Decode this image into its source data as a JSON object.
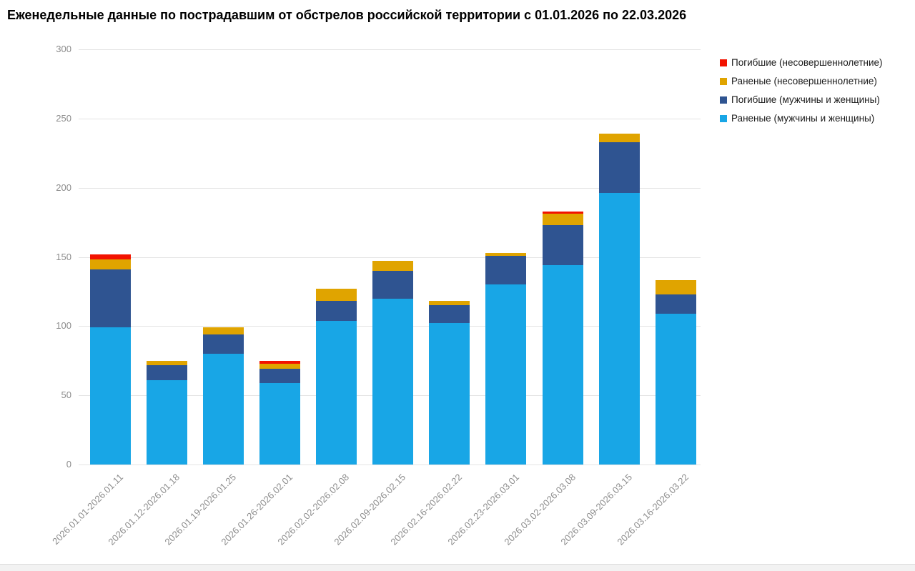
{
  "title": "Еженедельные данные по пострадавшим от обстрелов российской территории с 01.01.2026 по 22.03.2026",
  "chart_data": {
    "type": "bar",
    "stacked": true,
    "title": "Еженедельные данные по пострадавшим от обстрелов российской территории с 01.01.2026 по 22.03.2026",
    "categories": [
      "2026.01.01-2026.01.11",
      "2026.01.12-2026.01.18",
      "2026.01.19-2026.01.25",
      "2026.01.26-2026.02.01",
      "2026.02.02-2026.02.08",
      "2026.02.09-2026.02.15",
      "2026.02.16-2026.02.22",
      "2026.02.23-2026.03.01",
      "2026.03.02-2026.03.08",
      "2026.03.09-2026.03.15",
      "2026.03.16-2026.03.22"
    ],
    "series": [
      {
        "name": "Раненые (мужчины и женщины)",
        "color": "#18a6e6",
        "values": [
          99,
          61,
          80,
          59,
          104,
          120,
          102,
          130,
          144,
          196,
          109
        ]
      },
      {
        "name": "Погибшие (мужчины и женщины)",
        "color": "#2f5491",
        "values": [
          42,
          11,
          14,
          10,
          14,
          20,
          13,
          21,
          29,
          37,
          14
        ]
      },
      {
        "name": "Раненые (несовершеннолетние)",
        "color": "#e0a400",
        "values": [
          7,
          3,
          5,
          4,
          9,
          7,
          3,
          2,
          8,
          6,
          10
        ]
      },
      {
        "name": "Погибшие (несовершеннолетние)",
        "color": "#f21300",
        "values": [
          4,
          0,
          0,
          2,
          0,
          0,
          0,
          0,
          2,
          0,
          0
        ]
      }
    ],
    "totals": [
      152,
      75,
      99,
      75,
      127,
      147,
      118,
      153,
      183,
      239,
      133
    ],
    "xlabel": "",
    "ylabel": "",
    "ylim": [
      0,
      300
    ],
    "yticks": [
      0,
      50,
      100,
      150,
      200,
      250,
      300
    ],
    "grid": true,
    "legend_position": "top-right",
    "legend_order": [
      3,
      2,
      1,
      0
    ],
    "colors": {
      "grid": "#e4e4e4",
      "axis_text": "#8c8c8c",
      "title_text": "#000000",
      "legend_text": "#1a1a1a"
    }
  }
}
